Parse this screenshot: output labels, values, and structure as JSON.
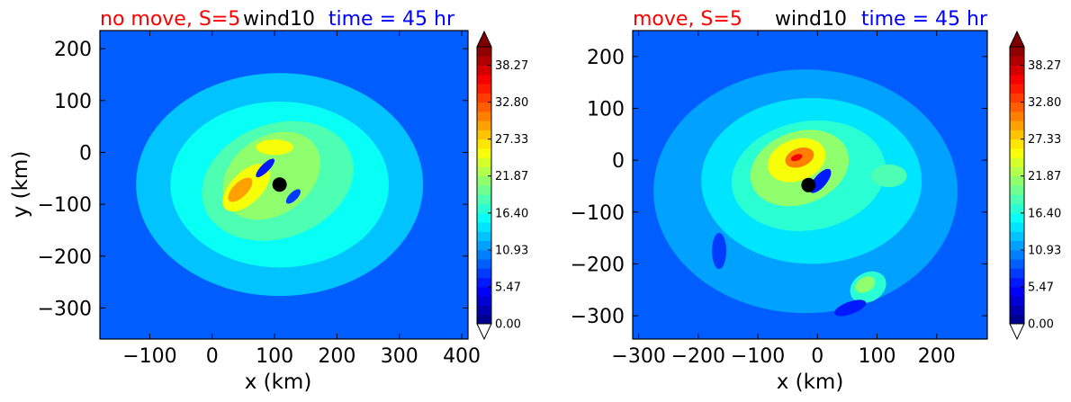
{
  "figure": {
    "colormap": [
      "#00007f",
      "#0000ff",
      "#007fff",
      "#00ffff",
      "#7fff7f",
      "#ffff00",
      "#ff7f00",
      "#ff0000",
      "#7f0000"
    ],
    "marker_color": "#000000"
  },
  "chart_data": [
    {
      "type": "heatmap",
      "title_left": "no move, S=5",
      "title_left_color": "#ff0000",
      "title_center": "wind10",
      "title_center_color": "#000000",
      "title_right": "time = 45 hr",
      "title_right_color": "#0000ff",
      "xlabel": "x (km)",
      "ylabel": "y (km)",
      "xlim": [
        -180,
        410
      ],
      "ylim": [
        -360,
        235
      ],
      "x_ticks": [
        -100,
        0,
        100,
        200,
        300,
        400
      ],
      "x_tick_labels": [
        "−100",
        "0",
        "100",
        "200",
        "300",
        "400"
      ],
      "y_ticks": [
        200,
        100,
        0,
        -100,
        -200,
        -300
      ],
      "y_tick_labels": [
        "200",
        "100",
        "0",
        "−100",
        "−200",
        "−300"
      ],
      "center_marker": {
        "x": 108,
        "y": -62
      },
      "background_level": 6,
      "features": [
        {
          "x": 108,
          "y": -62,
          "rx": 230,
          "ry": 215,
          "rot": 0,
          "level": 9
        },
        {
          "x": 108,
          "y": -62,
          "rx": 175,
          "ry": 160,
          "rot": 0,
          "level": 11
        },
        {
          "x": 105,
          "y": -55,
          "rx": 125,
          "ry": 110,
          "rot": -20,
          "level": 13
        },
        {
          "x": 95,
          "y": -45,
          "rx": 85,
          "ry": 75,
          "rot": -35,
          "level": 15
        },
        {
          "x": 55,
          "y": -68,
          "rx": 48,
          "ry": 30,
          "rot": -45,
          "level": 18
        },
        {
          "x": 45,
          "y": -72,
          "rx": 25,
          "ry": 14,
          "rot": -45,
          "level": 21
        },
        {
          "x": 100,
          "y": 10,
          "rx": 30,
          "ry": 15,
          "rot": 0,
          "level": 18
        },
        {
          "x": 85,
          "y": -30,
          "rx": 20,
          "ry": 8,
          "rot": -45,
          "level": 4
        },
        {
          "x": 130,
          "y": -85,
          "rx": 15,
          "ry": 8,
          "rot": -45,
          "level": 5
        }
      ],
      "colorbar": {
        "min": 0.0,
        "max": 41.0,
        "n_levels": 30,
        "extend": "both",
        "tick_values": [
          0.0,
          5.47,
          10.93,
          16.4,
          21.87,
          27.33,
          32.8,
          38.27
        ],
        "tick_labels": [
          "0.00",
          "5.47",
          "10.93",
          "16.40",
          "21.87",
          "27.33",
          "32.80",
          "38.27"
        ]
      }
    },
    {
      "type": "heatmap",
      "title_left": "move, S=5",
      "title_left_color": "#ff0000",
      "title_center": "wind10",
      "title_center_color": "#000000",
      "title_right": "time = 45 hr",
      "title_right_color": "#0000ff",
      "xlabel": "x (km)",
      "ylabel": "",
      "xlim": [
        -310,
        285
      ],
      "ylim": [
        -345,
        250
      ],
      "x_ticks": [
        -300,
        -200,
        -100,
        0,
        100,
        200
      ],
      "x_tick_labels": [
        "−300",
        "−200",
        "−100",
        "0",
        "100",
        "200"
      ],
      "y_ticks": [
        200,
        100,
        0,
        -100,
        -200,
        -300
      ],
      "y_tick_labels": [
        "200",
        "100",
        "0",
        "−100",
        "−200",
        "−300"
      ],
      "center_marker": {
        "x": -15,
        "y": -48
      },
      "background_level": 6,
      "features": [
        {
          "x": -20,
          "y": -60,
          "rx": 255,
          "ry": 235,
          "rot": 0,
          "level": 8
        },
        {
          "x": -10,
          "y": -40,
          "rx": 185,
          "ry": 160,
          "rot": 0,
          "level": 10
        },
        {
          "x": -15,
          "y": -30,
          "rx": 130,
          "ry": 105,
          "rot": -10,
          "level": 12
        },
        {
          "x": -30,
          "y": -15,
          "rx": 85,
          "ry": 70,
          "rot": -20,
          "level": 15
        },
        {
          "x": -35,
          "y": 0,
          "rx": 50,
          "ry": 40,
          "rot": -20,
          "level": 18
        },
        {
          "x": -30,
          "y": 5,
          "rx": 25,
          "ry": 18,
          "rot": -20,
          "level": 22
        },
        {
          "x": -35,
          "y": 5,
          "rx": 10,
          "ry": 6,
          "rot": -20,
          "level": 26
        },
        {
          "x": 120,
          "y": -30,
          "rx": 30,
          "ry": 22,
          "rot": 0,
          "level": 13
        },
        {
          "x": 85,
          "y": -245,
          "rx": 32,
          "ry": 28,
          "rot": -30,
          "level": 12
        },
        {
          "x": 80,
          "y": -240,
          "rx": 18,
          "ry": 14,
          "rot": -30,
          "level": 15
        },
        {
          "x": 5,
          "y": -40,
          "rx": 25,
          "ry": 12,
          "rot": -50,
          "level": 4
        },
        {
          "x": 55,
          "y": -285,
          "rx": 28,
          "ry": 12,
          "rot": -20,
          "level": 4
        },
        {
          "x": -165,
          "y": -175,
          "rx": 12,
          "ry": 35,
          "rot": 0,
          "level": 5
        }
      ],
      "colorbar": {
        "min": 0.0,
        "max": 41.0,
        "n_levels": 30,
        "extend": "both",
        "tick_values": [
          0.0,
          5.47,
          10.93,
          16.4,
          21.87,
          27.33,
          32.8,
          38.27
        ],
        "tick_labels": [
          "0.00",
          "5.47",
          "10.93",
          "16.40",
          "21.87",
          "27.33",
          "32.80",
          "38.27"
        ]
      }
    }
  ]
}
